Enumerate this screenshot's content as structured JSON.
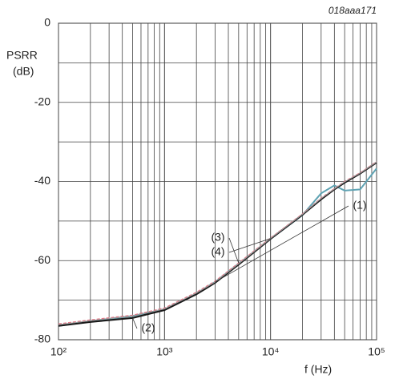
{
  "chart_data": {
    "type": "line",
    "title": "018aaa171",
    "ylabel": [
      "PSRR",
      "(dB)"
    ],
    "xlabel": "f (Hz)",
    "xscale": "log",
    "grid": true,
    "xlim": [
      100,
      100000
    ],
    "xticks": [
      {
        "value": 100,
        "label": "10²"
      },
      {
        "value": 1000,
        "label": "10³"
      },
      {
        "value": 10000,
        "label": "10⁴"
      },
      {
        "value": 100000,
        "label": "10⁵"
      }
    ],
    "ylim": [
      -80,
      0
    ],
    "yticks": [
      0,
      -20,
      -40,
      -60,
      -80
    ],
    "yminorticks": [
      -10,
      -30,
      -50,
      -70
    ],
    "x": [
      100,
      200,
      500,
      1000,
      2000,
      3000,
      5000,
      10000,
      20000,
      30000,
      40000,
      50000,
      70000,
      100000
    ],
    "series": [
      {
        "name": "(1)",
        "color": "#5fa3b3",
        "values": [
          -76.5,
          -75.3,
          -74,
          -72.3,
          -68.3,
          -65.4,
          -60.8,
          -54.5,
          -48.5,
          -43,
          -41,
          -42.3,
          -42,
          -36.7
        ]
      },
      {
        "name": "(2)",
        "color": "#1a1a1a",
        "values": [
          -76.5,
          -75.5,
          -74.5,
          -72.5,
          -68.5,
          -65.6,
          -61,
          -54.5,
          -48.4,
          -44.5,
          -42,
          -40.3,
          -38,
          -35.2
        ]
      },
      {
        "name": "(3)",
        "color": "#e07a88",
        "values": [
          -76,
          -75,
          -73.8,
          -72,
          -68,
          -65.2,
          -60.6,
          -54.3,
          -48.2,
          -44.2,
          -41.8,
          -40,
          -37.8,
          -35
        ]
      },
      {
        "name": "(4)",
        "color": "#9a9a9a",
        "values": [
          -76.2,
          -75.2,
          -74,
          -72.2,
          -68.2,
          -65.4,
          -60.8,
          -54.4,
          -48.3,
          -44.3,
          -41.9,
          -40.1,
          -37.9,
          -35.1
        ]
      }
    ]
  }
}
